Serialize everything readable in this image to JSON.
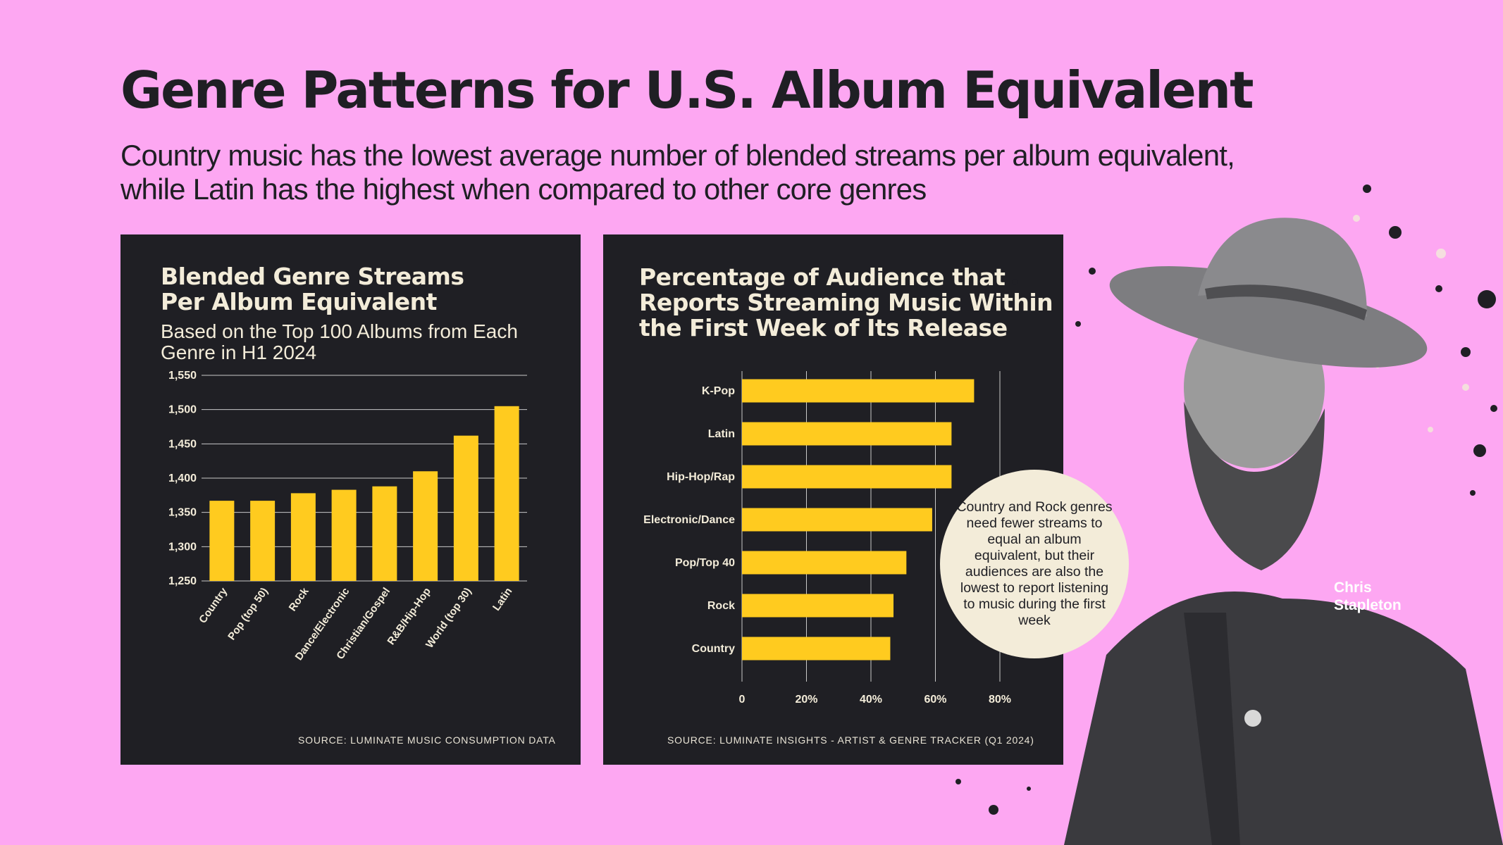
{
  "page": {
    "title": "Genre Patterns for U.S. Album Equivalent",
    "subtitle_lines": [
      "Country music has the lowest average number of blended streams per album equivalent,",
      "while Latin has the highest when compared to other core genres"
    ]
  },
  "colors": {
    "background": "#fda7f2",
    "panel": "#1f1f24",
    "bar": "#ffcb1f",
    "panel_text": "#f3ecd9",
    "callout": "#f3ecd9"
  },
  "chart_data": [
    {
      "type": "bar",
      "orientation": "vertical",
      "title_lines": [
        "Blended Genre Streams",
        "Per Album Equivalent"
      ],
      "subtitle_lines": [
        "Based on the Top 100 Albums from Each",
        "Genre in H1 2024"
      ],
      "categories": [
        "Country",
        "Pop (top 50)",
        "Rock",
        "Dance/Electronic",
        "Christian/Gospel",
        "R&B/Hip-Hop",
        "World (top 30)",
        "Latin"
      ],
      "values": [
        1367,
        1367,
        1378,
        1383,
        1388,
        1410,
        1462,
        1505
      ],
      "ylim": [
        1250,
        1550
      ],
      "yticks": [
        1250,
        1300,
        1350,
        1400,
        1450,
        1500,
        1550
      ],
      "ytick_labels": [
        "1,250",
        "1,300",
        "1,350",
        "1,400",
        "1,450",
        "1,500",
        "1,550"
      ],
      "grid": true,
      "source": "SOURCE: LUMINATE MUSIC CONSUMPTION DATA"
    },
    {
      "type": "bar",
      "orientation": "horizontal",
      "title_lines": [
        "Percentage of Audience that",
        "Reports Streaming Music Within",
        "the First Week of Its Release"
      ],
      "categories": [
        "K-Pop",
        "Latin",
        "Hip-Hop/Rap",
        "Electronic/Dance",
        "Pop/Top 40",
        "Rock",
        "Country"
      ],
      "values": [
        72,
        65,
        65,
        59,
        51,
        47,
        46
      ],
      "xlim": [
        0,
        80
      ],
      "xticks": [
        0,
        20,
        40,
        60,
        80
      ],
      "xtick_labels": [
        "0",
        "20%",
        "40%",
        "60%",
        "80%"
      ],
      "grid": true,
      "source": "SOURCE: LUMINATE INSIGHTS - ARTIST & GENRE TRACKER (Q1 2024)"
    }
  ],
  "callout_text": "Country and Rock genres need fewer streams to equal an album equivalent, but their audiences are also the lowest to report listening to music during the first week",
  "photo": {
    "icon": "artist-portrait-icon",
    "caption_lines": [
      "Chris",
      "Stapleton"
    ]
  }
}
